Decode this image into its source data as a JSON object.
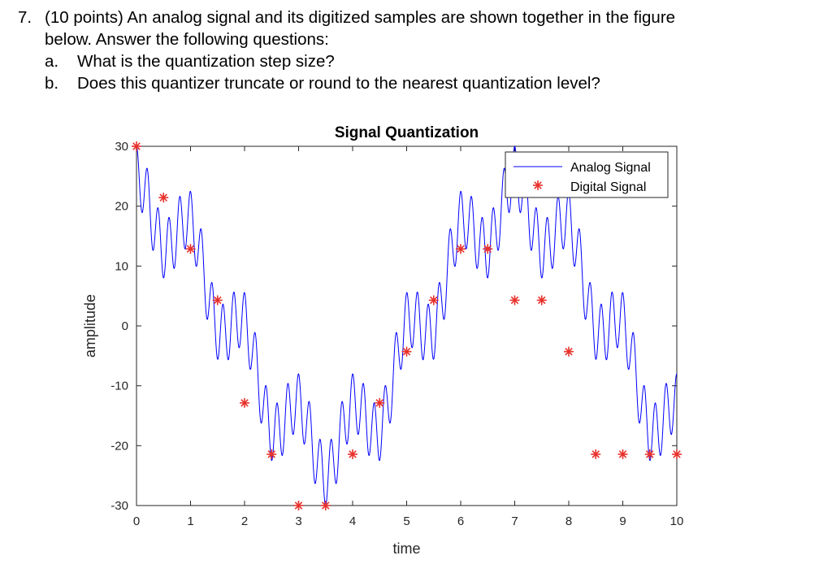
{
  "question": {
    "number": "7.",
    "text_line1": "(10 points) An analog signal and its digitized samples are shown together in the figure",
    "text_line2": "below. Answer the following questions:",
    "parts": [
      {
        "label": "a.",
        "text": "What is the quantization step size?"
      },
      {
        "label": "b.",
        "text": "Does this quantizer truncate or round to the nearest quantization level?"
      }
    ]
  },
  "chart_data": {
    "type": "line",
    "title": "Signal Quantization",
    "xlabel": "time",
    "ylabel": "amplitude",
    "xlim": [
      0,
      10
    ],
    "ylim": [
      -30,
      30
    ],
    "xticks": [
      0,
      1,
      2,
      3,
      4,
      5,
      6,
      7,
      8,
      9,
      10
    ],
    "xtick_labels": [
      "0",
      "1",
      "2",
      "3",
      "4",
      "5",
      "6",
      "7",
      "8",
      "9",
      "10"
    ],
    "yticks": [
      -30,
      -20,
      -10,
      0,
      10,
      20,
      30
    ],
    "ytick_labels": [
      "-30",
      "-20",
      "-10",
      "0",
      "10",
      "20",
      "30"
    ],
    "legend_position": "top-right",
    "series": [
      {
        "name": "Analog Signal",
        "style": "line",
        "color": "#0000ff",
        "model": {
          "base_amplitude": 20,
          "base_period": 7,
          "ripple_amplitude": 5,
          "ripple_period": 1,
          "fast_amplitude": 5,
          "fast_period": 0.2
        }
      },
      {
        "name": "Digital Signal",
        "style": "marker",
        "marker": "asterisk",
        "color": "#e8302a",
        "x": [
          0,
          0.5,
          1,
          1.5,
          2,
          2.5,
          3,
          3.5,
          4,
          4.5,
          5,
          5.5,
          6,
          6.5,
          7,
          7.5,
          8,
          8.5,
          9,
          9.5,
          10
        ],
        "y": [
          30,
          21.43,
          12.86,
          4.29,
          -12.86,
          -21.43,
          -30,
          -30,
          -21.43,
          -12.86,
          -4.29,
          4.29,
          12.86,
          12.86,
          4.29,
          4.29,
          -4.29,
          -21.43,
          -21.43,
          -21.43,
          -21.43
        ]
      }
    ]
  }
}
